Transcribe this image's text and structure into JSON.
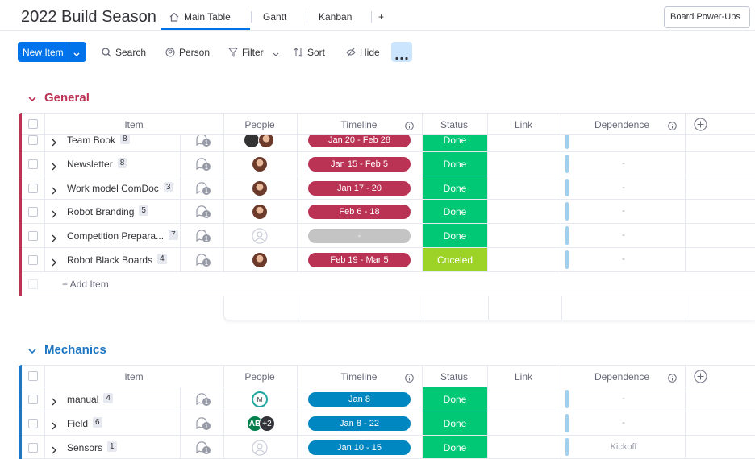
{
  "header": {
    "title": "2022 Build Season",
    "tabs": [
      "Main Table",
      "Gantt",
      "Kanban",
      "+"
    ],
    "powerups": "Board Power-Ups"
  },
  "toolbar": {
    "new_item": "New Item",
    "actions": [
      "Search",
      "Person",
      "Filter",
      "Sort",
      "Hide"
    ]
  },
  "groups": [
    {
      "name": "General",
      "color": "#bb3354",
      "columns": [
        "Item",
        "People",
        "Timeline",
        "Status",
        "Link",
        "Dependence"
      ],
      "rows": [
        {
          "item": "Team Book",
          "count": "8",
          "people": [],
          "timeline": "Jan 20 - Feb 28",
          "status": "Done",
          "dependence": ""
        },
        {
          "item": "Newsletter",
          "count": "8",
          "people": [],
          "timeline": "Jan 15 - Feb 5",
          "status": "Done",
          "dependence": "-"
        },
        {
          "item": "Work model ComDoc",
          "count": "3",
          "people": [],
          "timeline": "Jan 17 - 20",
          "status": "Done",
          "dependence": "-"
        },
        {
          "item": "Robot Branding",
          "count": "5",
          "people": [],
          "timeline": "Feb 6 - 18",
          "status": "Done",
          "dependence": "-"
        },
        {
          "item": "Competition Prepara...",
          "count": "7",
          "people": [],
          "timeline": "-",
          "status": "Done",
          "dependence": "-"
        },
        {
          "item": "Robot Black Boards",
          "count": "4",
          "people": [],
          "timeline": "Feb 19 - Mar 5",
          "status": "Cnceled",
          "dependence": "-"
        }
      ],
      "add_item": "+ Add Item"
    },
    {
      "name": "Mechanics",
      "color": "#1f76c2",
      "columns": [
        "Item",
        "People",
        "Timeline",
        "Status",
        "Link",
        "Dependence"
      ],
      "rows": [
        {
          "item": "manual",
          "count": "4",
          "people": [
            "M"
          ],
          "timeline": "Jan 8",
          "status": "Done",
          "dependence": "-"
        },
        {
          "item": "Field",
          "count": "6",
          "people": [
            "AB",
            "+2"
          ],
          "timeline": "Jan 8 - 22",
          "status": "Done",
          "dependence": "-"
        },
        {
          "item": "Sensors",
          "count": "1",
          "people": [],
          "timeline": "Jan 10 - 15",
          "status": "Done",
          "dependence": "Kickoff"
        }
      ]
    }
  ]
}
